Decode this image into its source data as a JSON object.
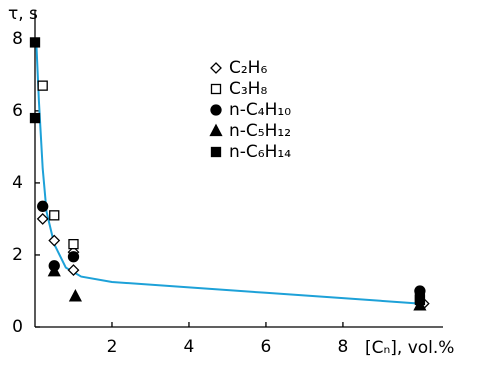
{
  "chart_data": {
    "type": "scatter",
    "ylabel": "τ, s",
    "xlabel": "[Cₙ], vol.%",
    "xlim": [
      0,
      10.6
    ],
    "ylim": [
      0,
      8.8
    ],
    "xticks": [
      2,
      4,
      6,
      8
    ],
    "yticks": [
      0,
      2,
      4,
      6,
      8
    ],
    "series": [
      {
        "name": "C₂H₆",
        "marker": "diamond",
        "filled": false,
        "color": "#000000",
        "x": [
          0.2,
          0.5,
          1.0,
          1.0,
          10.1
        ],
        "values": [
          3.0,
          2.4,
          2.08,
          1.58,
          0.65
        ]
      },
      {
        "name": "C₃H₈",
        "marker": "square",
        "filled": false,
        "color": "#000000",
        "x": [
          0.2,
          0.5,
          1.0,
          10.0
        ],
        "values": [
          6.7,
          3.1,
          2.3,
          0.8
        ]
      },
      {
        "name": "n-C₄H₁₀",
        "marker": "circle",
        "filled": true,
        "color": "#000000",
        "x": [
          0.2,
          0.5,
          1.0,
          10.0
        ],
        "values": [
          3.35,
          1.7,
          1.95,
          1.0
        ]
      },
      {
        "name": "n-C₅H₁₂",
        "marker": "triangle",
        "filled": true,
        "color": "#000000",
        "x": [
          0.5,
          1.05,
          10.0
        ],
        "values": [
          1.55,
          0.85,
          0.6
        ]
      },
      {
        "name": "n-C₆H₁₄",
        "marker": "square",
        "filled": true,
        "color": "#000000",
        "x": [
          0.0,
          0.0,
          10.0
        ],
        "values": [
          7.9,
          5.8,
          0.75
        ]
      }
    ],
    "fit": {
      "color": "#1da1d8",
      "x": [
        0.03,
        0.1,
        0.2,
        0.3,
        0.5,
        0.8,
        1.2,
        2,
        4,
        6,
        8,
        10
      ],
      "values": [
        8.0,
        6.3,
        4.4,
        3.2,
        2.3,
        1.65,
        1.4,
        1.25,
        1.1,
        0.95,
        0.8,
        0.65
      ]
    }
  }
}
